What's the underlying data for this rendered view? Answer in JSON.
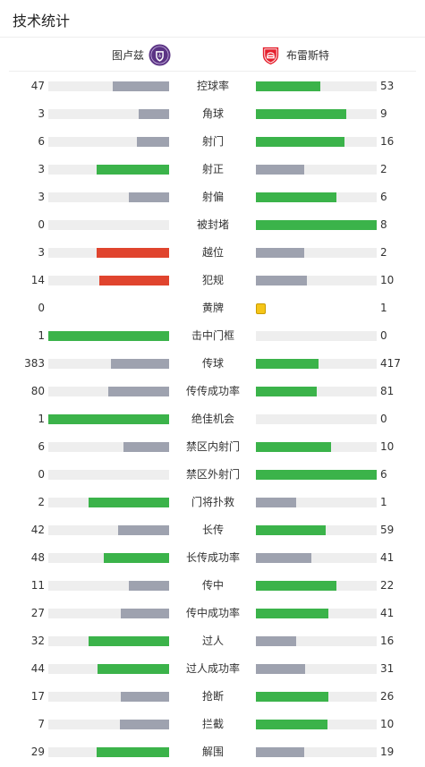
{
  "header": {
    "title": "技术统计"
  },
  "teams": {
    "home": "图卢兹",
    "away": "布雷斯特"
  },
  "colors": {
    "win": "#3bb34a",
    "lose": "#9ea2af",
    "bad": "#e0442e",
    "yellow": "#f5c518",
    "track": "#eeeeee"
  },
  "icons": {
    "home_crest": "toulouse-crest-icon",
    "away_crest": "brest-crest-icon",
    "card": "yellow-card-icon"
  },
  "stats": [
    {
      "label": "控球率",
      "home": "47",
      "away": "53",
      "home_pct": 0.47,
      "away_pct": 0.53,
      "home_color": "lose",
      "away_color": "win"
    },
    {
      "label": "角球",
      "home": "3",
      "away": "9",
      "home_pct": 0.25,
      "away_pct": 0.75,
      "home_color": "lose",
      "away_color": "win"
    },
    {
      "label": "射门",
      "home": "6",
      "away": "16",
      "home_pct": 0.27,
      "away_pct": 0.73,
      "home_color": "lose",
      "away_color": "win"
    },
    {
      "label": "射正",
      "home": "3",
      "away": "2",
      "home_pct": 0.6,
      "away_pct": 0.4,
      "home_color": "win",
      "away_color": "lose"
    },
    {
      "label": "射偏",
      "home": "3",
      "away": "6",
      "home_pct": 0.33,
      "away_pct": 0.67,
      "home_color": "lose",
      "away_color": "win"
    },
    {
      "label": "被封堵",
      "home": "0",
      "away": "8",
      "home_pct": 0,
      "away_pct": 1,
      "home_color": "lose",
      "away_color": "win"
    },
    {
      "label": "越位",
      "home": "3",
      "away": "2",
      "home_pct": 0.6,
      "away_pct": 0.4,
      "home_color": "bad",
      "away_color": "lose"
    },
    {
      "label": "犯规",
      "home": "14",
      "away": "10",
      "home_pct": 0.58,
      "away_pct": 0.42,
      "home_color": "bad",
      "away_color": "lose"
    },
    {
      "label": "黄牌",
      "home": "0",
      "away": "1",
      "card": true
    },
    {
      "label": "击中门框",
      "home": "1",
      "away": "0",
      "home_pct": 1,
      "away_pct": 0,
      "home_color": "win",
      "away_color": "lose"
    },
    {
      "label": "传球",
      "home": "383",
      "away": "417",
      "home_pct": 0.48,
      "away_pct": 0.52,
      "home_color": "lose",
      "away_color": "win"
    },
    {
      "label": "传传成功率",
      "home": "80",
      "away": "81",
      "home_pct": 0.5,
      "away_pct": 0.5,
      "home_color": "lose",
      "away_color": "win"
    },
    {
      "label": "绝佳机会",
      "home": "1",
      "away": "0",
      "home_pct": 1,
      "away_pct": 0,
      "home_color": "win",
      "away_color": "lose"
    },
    {
      "label": "禁区内射门",
      "home": "6",
      "away": "10",
      "home_pct": 0.38,
      "away_pct": 0.62,
      "home_color": "lose",
      "away_color": "win"
    },
    {
      "label": "禁区外射门",
      "home": "0",
      "away": "6",
      "home_pct": 0,
      "away_pct": 1,
      "home_color": "lose",
      "away_color": "win"
    },
    {
      "label": "门将扑救",
      "home": "2",
      "away": "1",
      "home_pct": 0.67,
      "away_pct": 0.33,
      "home_color": "win",
      "away_color": "lose"
    },
    {
      "label": "长传",
      "home": "42",
      "away": "59",
      "home_pct": 0.42,
      "away_pct": 0.58,
      "home_color": "lose",
      "away_color": "win"
    },
    {
      "label": "长传成功率",
      "home": "48",
      "away": "41",
      "home_pct": 0.54,
      "away_pct": 0.46,
      "home_color": "win",
      "away_color": "lose"
    },
    {
      "label": "传中",
      "home": "11",
      "away": "22",
      "home_pct": 0.33,
      "away_pct": 0.67,
      "home_color": "lose",
      "away_color": "win"
    },
    {
      "label": "传中成功率",
      "home": "27",
      "away": "41",
      "home_pct": 0.4,
      "away_pct": 0.6,
      "home_color": "lose",
      "away_color": "win"
    },
    {
      "label": "过人",
      "home": "32",
      "away": "16",
      "home_pct": 0.67,
      "away_pct": 0.33,
      "home_color": "win",
      "away_color": "lose"
    },
    {
      "label": "过人成功率",
      "home": "44",
      "away": "31",
      "home_pct": 0.59,
      "away_pct": 0.41,
      "home_color": "win",
      "away_color": "lose"
    },
    {
      "label": "抢断",
      "home": "17",
      "away": "26",
      "home_pct": 0.4,
      "away_pct": 0.6,
      "home_color": "lose",
      "away_color": "win"
    },
    {
      "label": "拦截",
      "home": "7",
      "away": "10",
      "home_pct": 0.41,
      "away_pct": 0.59,
      "home_color": "lose",
      "away_color": "win"
    },
    {
      "label": "解围",
      "home": "29",
      "away": "19",
      "home_pct": 0.6,
      "away_pct": 0.4,
      "home_color": "win",
      "away_color": "lose"
    }
  ]
}
